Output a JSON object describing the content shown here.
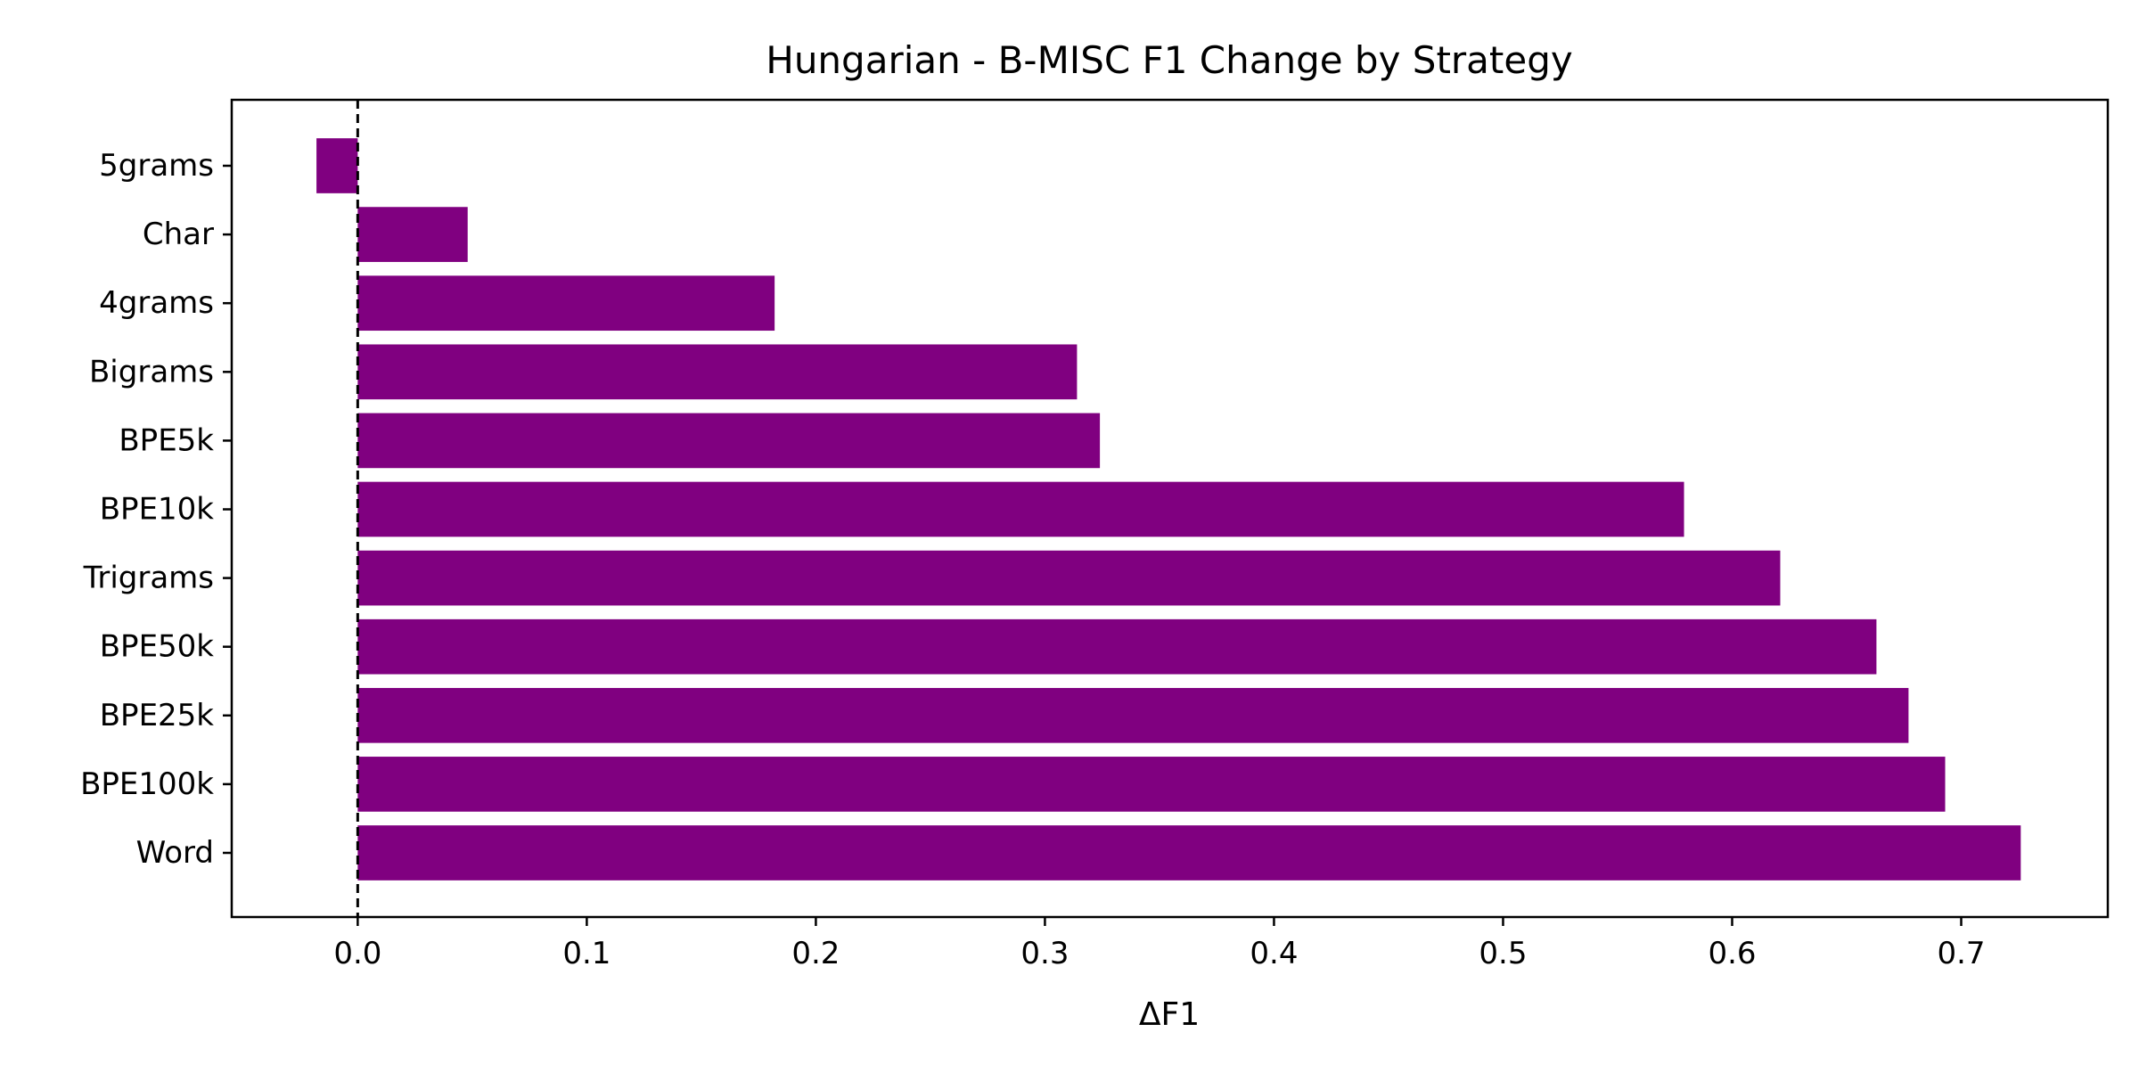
{
  "chart_data": {
    "type": "bar",
    "orientation": "horizontal",
    "title": "Hungarian - B-MISC F1 Change by Strategy",
    "xlabel": "ΔF1",
    "ylabel": "",
    "categories": [
      "5grams",
      "Char",
      "4grams",
      "Bigrams",
      "BPE5k",
      "BPE10k",
      "Trigrams",
      "BPE50k",
      "BPE25k",
      "BPE100k",
      "Word"
    ],
    "values": [
      -0.018,
      0.048,
      0.182,
      0.314,
      0.324,
      0.579,
      0.621,
      0.663,
      0.677,
      0.693,
      0.726
    ],
    "xlim": [
      -0.055,
      0.764
    ],
    "xticks": [
      0.0,
      0.1,
      0.2,
      0.3,
      0.4,
      0.5,
      0.6,
      0.7
    ],
    "xtick_labels": [
      "0.0",
      "0.1",
      "0.2",
      "0.3",
      "0.4",
      "0.5",
      "0.6",
      "0.7"
    ],
    "bar_color": "#800080",
    "reference_line": {
      "x": 0,
      "style": "dashed",
      "color": "#000000"
    },
    "grid": false,
    "legend": "none"
  }
}
